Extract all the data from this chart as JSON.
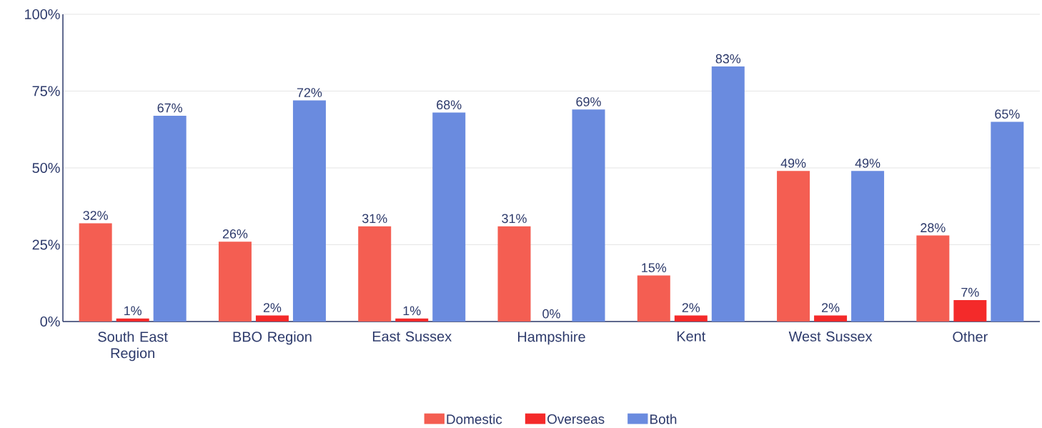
{
  "chart_data": {
    "type": "bar",
    "categories": [
      "South East Region",
      "BBO Region",
      "East Sussex",
      "Hampshire",
      "Kent",
      "West Sussex",
      "Other"
    ],
    "series": [
      {
        "name": "Domestic",
        "color": "#f45e52",
        "values": [
          32,
          26,
          31,
          31,
          15,
          49,
          28
        ],
        "value_labels": [
          "32%",
          "26%",
          "31%",
          "31%",
          "15%",
          "49%",
          "28%"
        ]
      },
      {
        "name": "Overseas",
        "color": "#f42a2a",
        "values": [
          1,
          2,
          1,
          0,
          2,
          2,
          7
        ],
        "value_labels": [
          "1%",
          "2%",
          "1%",
          "0%",
          "2%",
          "2%",
          "7%"
        ]
      },
      {
        "name": "Both",
        "color": "#6a8bdf",
        "values": [
          67,
          72,
          68,
          69,
          83,
          49,
          65
        ],
        "value_labels": [
          "67%",
          "72%",
          "68%",
          "69%",
          "83%",
          "49%",
          "65%"
        ]
      }
    ],
    "ylim": [
      0,
      100
    ],
    "yticks": [
      {
        "value": 0,
        "label": "0%"
      },
      {
        "value": 25,
        "label": "25%"
      },
      {
        "value": 50,
        "label": "50%"
      },
      {
        "value": 75,
        "label": "75%"
      },
      {
        "value": 100,
        "label": "100%"
      }
    ],
    "grid": "y",
    "legend": "bottom"
  }
}
